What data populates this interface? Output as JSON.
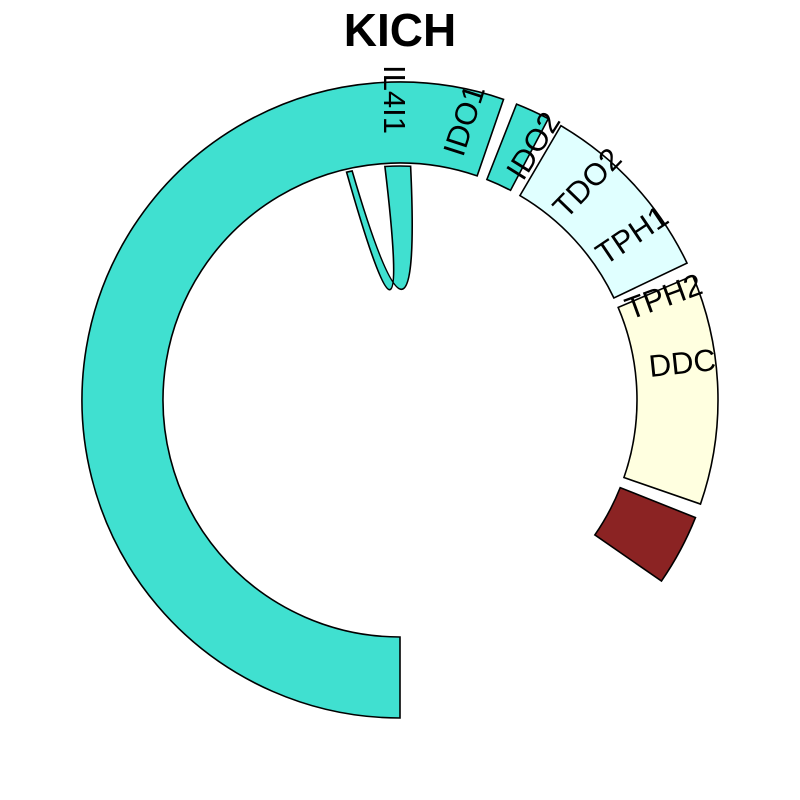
{
  "chart_data": {
    "type": "chord",
    "title": "KICH",
    "sectors": [
      {
        "name": "DDC",
        "start_deg": 90,
        "end_deg": 289,
        "color": "#40E0D0"
      },
      {
        "name": "TPH2",
        "start_deg": 291.5,
        "end_deg": 297.8,
        "color": "#40E0D0"
      },
      {
        "name": "TPH1",
        "start_deg": 300.4,
        "end_deg": 334.5,
        "color": "#E0FFFF"
      },
      {
        "name": "TDO2",
        "start_deg": 337.0,
        "end_deg": 379.1,
        "color": "#FFFFE0"
      },
      {
        "name": "IDO2",
        "start_deg": 381.7,
        "end_deg": 394.7,
        "color": "#8B2323"
      },
      {
        "name": "IDO1",
        "start_deg": 397.2,
        "end_deg": 397.5,
        "color": "#40E0D0"
      },
      {
        "name": "IL4I1",
        "start_deg": 400.0,
        "end_deg": 450.0,
        "color": "#40E0D0"
      }
    ],
    "label_order": [
      "IL4I1",
      "IDO1",
      "IDO2",
      "TDO2",
      "TPH1",
      "TPH2",
      "DDC"
    ],
    "links": [
      {
        "from": "IL4I1",
        "to": "DDC",
        "color": "#40E0D0"
      }
    ]
  }
}
